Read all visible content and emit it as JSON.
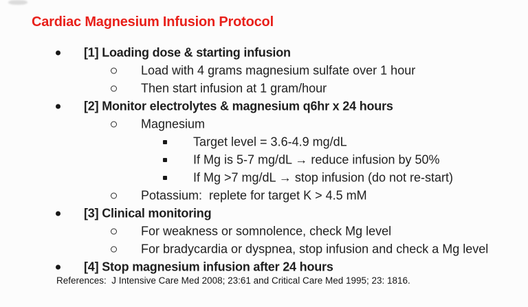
{
  "title": "Cardiac Magnesium Infusion Protocol",
  "colors": {
    "title_red": "#e8201a",
    "text": "#1f1f1f",
    "background": "#fcfcfc"
  },
  "protocol": {
    "items": [
      {
        "level": 1,
        "text": "[1] Loading dose & starting infusion"
      },
      {
        "level": 2,
        "text": "Load with 4 grams magnesium sulfate over 1 hour"
      },
      {
        "level": 2,
        "text": "Then start infusion at 1 gram/hour"
      },
      {
        "level": 1,
        "text": "[2] Monitor electrolytes & magnesium q6hr x 24 hours"
      },
      {
        "level": 2,
        "text": "Magnesium"
      },
      {
        "level": 3,
        "text": "Target level = 3.6-4.9 mg/dL"
      },
      {
        "level": 3,
        "text": "If Mg is 5-7 mg/dL → reduce infusion by 50%"
      },
      {
        "level": 3,
        "text": "If Mg >7 mg/dL → stop infusion (do not re-start)"
      },
      {
        "level": 2,
        "text": "Potassium:  replete for target K > 4.5 mM"
      },
      {
        "level": 1,
        "text": "[3] Clinical monitoring"
      },
      {
        "level": 2,
        "text": "For weakness or somnolence, check Mg level"
      },
      {
        "level": 2,
        "text": "For bradycardia or dyspnea, stop infusion and check a Mg level"
      },
      {
        "level": 1,
        "text": "[4] Stop magnesium infusion after 24 hours"
      }
    ]
  },
  "references": "References:  J Intensive Care Med 2008; 23:61 and Critical Care Med 1995; 23: 1816."
}
